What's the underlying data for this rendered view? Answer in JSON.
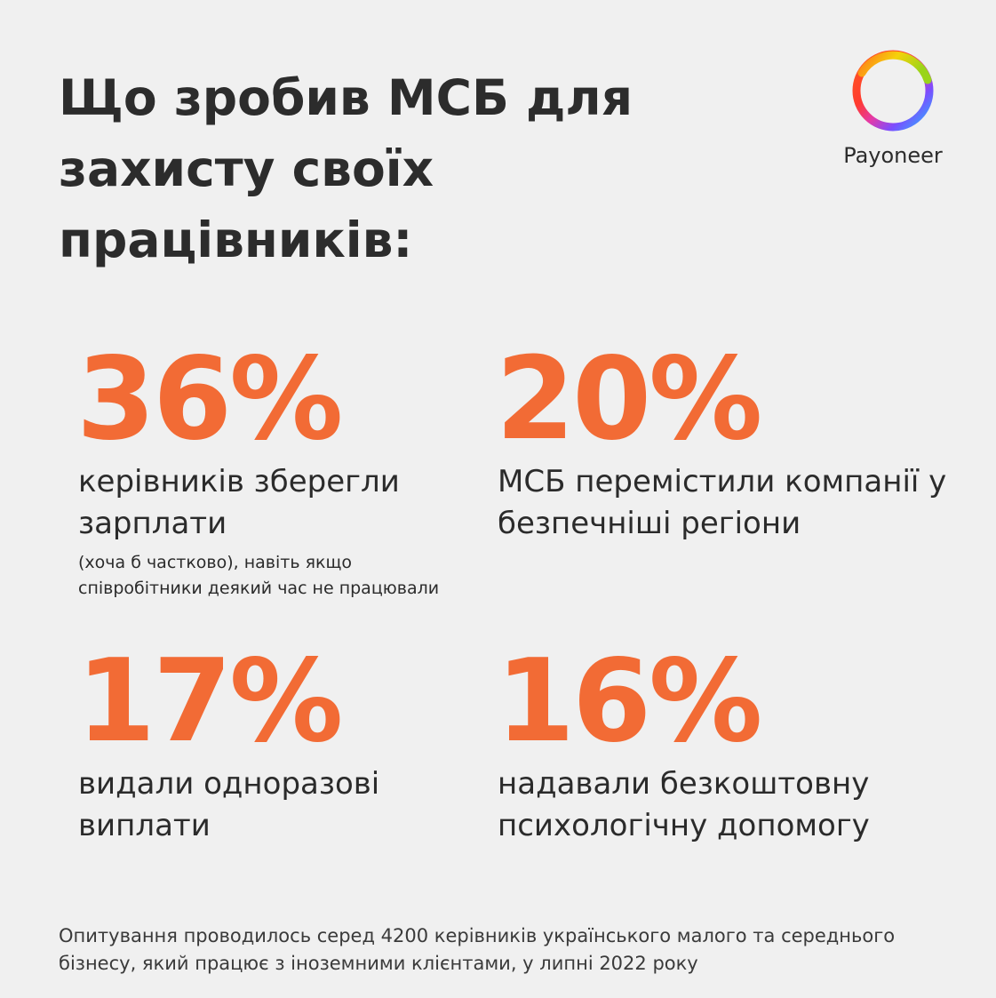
{
  "title": {
    "line1": "Що зробив МСБ для",
    "line2": "захисту своїх",
    "line3": "працівників:"
  },
  "logo": {
    "icon": "payoneer-ring-icon",
    "text": "Payoneer"
  },
  "stats": [
    {
      "value": "36%",
      "desc_line1": "керівників зберегли",
      "desc_line2": "зарплати",
      "note_line1": "(хоча б частково), навіть якщо",
      "note_line2": "співробітники деякий час не працювали"
    },
    {
      "value": "20%",
      "desc_line1": "МСБ перемістили компанії у",
      "desc_line2": "безпечніші регіони"
    },
    {
      "value": "17%",
      "desc_line1": "видали одноразові",
      "desc_line2": "виплати"
    },
    {
      "value": "16%",
      "desc_line1": "надавали безкоштовну",
      "desc_line2": "психологічну допомогу"
    }
  ],
  "footer": {
    "line1": "Опитування проводилось серед 4200 керівників українського малого та середнього",
    "line2": "бізнесу, який працює з іноземними клієнтами, у липні 2022 року"
  },
  "colors": {
    "accent": "#f26b35",
    "background": "#f0f0f0",
    "text": "#2b2b2b"
  }
}
